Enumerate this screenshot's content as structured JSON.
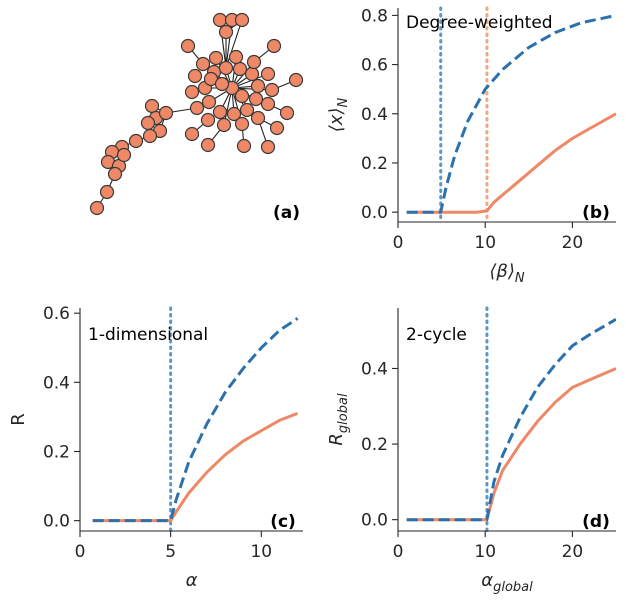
{
  "colors": {
    "blue": "#2b72ad",
    "orange": "#ee8866",
    "vline_blue": "#5b96c4",
    "vline_orange": "#f2a580",
    "node_fill": "#ee8866",
    "node_edge": "#3a3a3a",
    "axis": "#262626"
  },
  "network": {
    "panel_label": "(a)",
    "node_count": 60
  },
  "chart_data": [
    {
      "id": "b",
      "type": "line",
      "panel_label": "(b)",
      "annotation": "Degree-weighted",
      "xlabel_base": "⟨β⟩",
      "xlabel_sub": "N",
      "ylabel_base": "⟨x⟩",
      "ylabel_sub": "N",
      "xlim": [
        0,
        25
      ],
      "ylim": [
        -0.04,
        0.83
      ],
      "xticks": [
        0,
        10,
        20
      ],
      "yticks": [
        0.0,
        0.2,
        0.4,
        0.6,
        0.8
      ],
      "ytick_decimals": 1,
      "vlines": [
        {
          "x": 4.9,
          "color": "vline_blue"
        },
        {
          "x": 10.2,
          "color": "vline_orange"
        }
      ],
      "series": [
        {
          "color": "blue",
          "dash": true,
          "x": [
            1,
            2,
            3,
            4,
            4.9,
            5.5,
            6.5,
            8,
            10,
            12,
            15,
            18,
            21,
            25
          ],
          "y": [
            0,
            0,
            0,
            0,
            0,
            0.1,
            0.23,
            0.37,
            0.5,
            0.58,
            0.67,
            0.73,
            0.77,
            0.8
          ]
        },
        {
          "color": "orange",
          "dash": false,
          "x": [
            1,
            3,
            5,
            7,
            9,
            10.2,
            11,
            12,
            14,
            16,
            18,
            20,
            22,
            25
          ],
          "y": [
            0,
            0,
            0,
            0,
            0,
            0.005,
            0.04,
            0.07,
            0.13,
            0.19,
            0.25,
            0.3,
            0.34,
            0.4
          ]
        }
      ]
    },
    {
      "id": "c",
      "type": "line",
      "panel_label": "(c)",
      "annotation": "1-dimensional",
      "xlabel_base": "α",
      "xlabel_sub": "",
      "ylabel_base": "R",
      "ylabel_sub": "",
      "xlim": [
        0,
        12.3
      ],
      "ylim": [
        -0.03,
        0.615
      ],
      "xticks": [
        0,
        5,
        10
      ],
      "yticks": [
        0.0,
        0.2,
        0.4,
        0.6
      ],
      "ytick_decimals": 1,
      "vlines": [
        {
          "x": 5.0,
          "color": "vline_blue"
        }
      ],
      "series": [
        {
          "color": "blue",
          "dash": true,
          "x": [
            0.7,
            2,
            3,
            4,
            5,
            5.3,
            6,
            7,
            8,
            9,
            10,
            11,
            12
          ],
          "y": [
            0,
            0,
            0,
            0,
            0,
            0.06,
            0.17,
            0.28,
            0.37,
            0.44,
            0.5,
            0.55,
            0.585
          ]
        },
        {
          "color": "orange",
          "dash": false,
          "x": [
            0.7,
            2,
            3,
            4,
            5,
            5.3,
            6,
            7,
            8,
            9,
            10,
            11,
            12
          ],
          "y": [
            0,
            0,
            0,
            0,
            0,
            0.025,
            0.08,
            0.14,
            0.19,
            0.23,
            0.26,
            0.29,
            0.31
          ]
        }
      ]
    },
    {
      "id": "d",
      "type": "line",
      "panel_label": "(d)",
      "annotation": "2-cycle",
      "xlabel_base": "α",
      "xlabel_sub": "global",
      "ylabel_base": "R",
      "ylabel_sub": "global",
      "xlim": [
        0,
        25
      ],
      "ylim": [
        -0.03,
        0.56
      ],
      "xticks": [
        0,
        10,
        20
      ],
      "yticks": [
        0.0,
        0.2,
        0.4
      ],
      "ytick_decimals": 1,
      "vlines": [
        {
          "x": 10.2,
          "color": "vline_blue"
        }
      ],
      "series": [
        {
          "color": "blue",
          "dash": true,
          "x": [
            1,
            3,
            5,
            7,
            9,
            10.2,
            11,
            12,
            14,
            16,
            18,
            20,
            22,
            25
          ],
          "y": [
            0,
            0,
            0,
            0,
            0,
            0,
            0.1,
            0.17,
            0.27,
            0.35,
            0.41,
            0.46,
            0.49,
            0.53
          ]
        },
        {
          "color": "orange",
          "dash": false,
          "x": [
            1,
            3,
            5,
            7,
            9,
            10.2,
            11,
            12,
            14,
            16,
            18,
            20,
            22,
            25
          ],
          "y": [
            0,
            0,
            0,
            0,
            0,
            0,
            0.07,
            0.13,
            0.2,
            0.26,
            0.31,
            0.35,
            0.37,
            0.4
          ]
        }
      ]
    }
  ]
}
